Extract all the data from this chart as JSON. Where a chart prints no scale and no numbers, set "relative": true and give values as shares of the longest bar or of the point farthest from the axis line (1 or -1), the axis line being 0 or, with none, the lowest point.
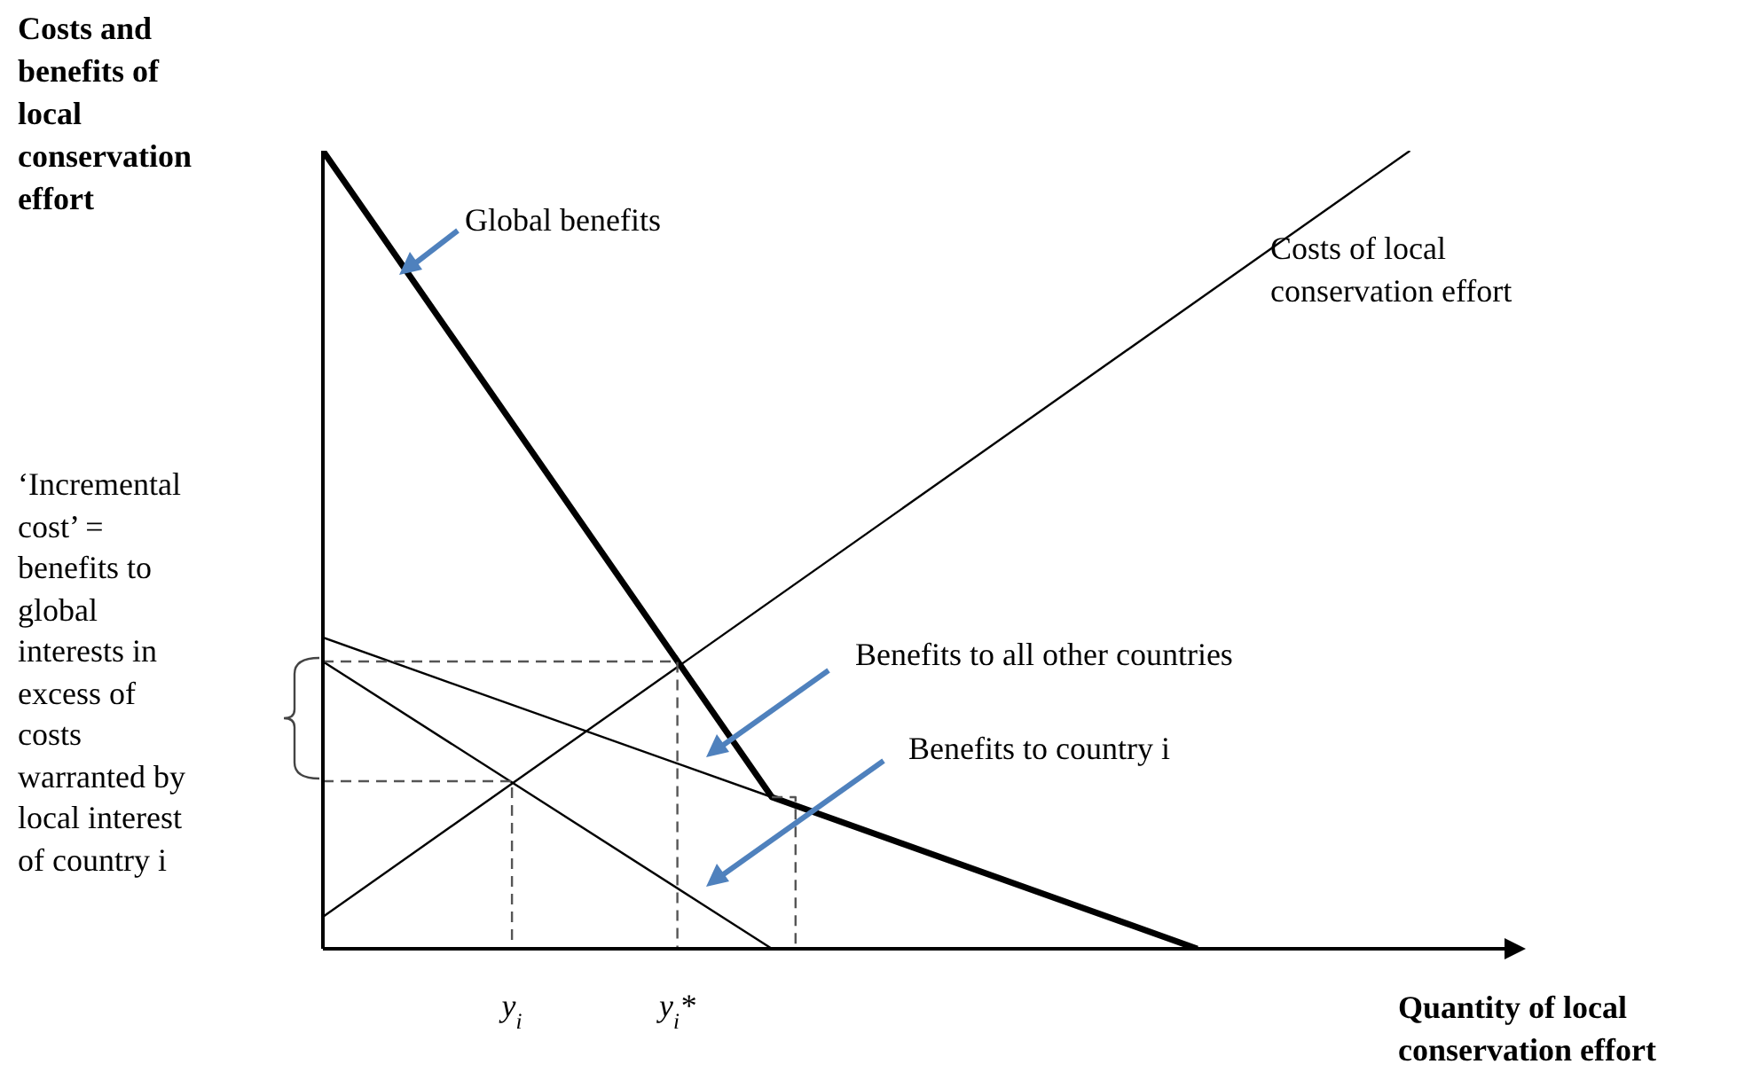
{
  "chart_data": {
    "type": "line",
    "relative": true,
    "ylabel": "Costs and benefits of local conservation effort",
    "xlabel": "Quantity of local conservation effort",
    "categories": [
      null,
      null,
      null,
      null,
      null,
      null,
      null,
      null,
      "y$_{i}$",
      null,
      null,
      null,
      null,
      null,
      null,
      "y$_{i}$*",
      null,
      null,
      null,
      null,
      null,
      null,
      null,
      null,
      null,
      null,
      null,
      null,
      null,
      null,
      null,
      null,
      null,
      null,
      null,
      null,
      null,
      null,
      null,
      null,
      null,
      null,
      null,
      null,
      null,
      null,
      null,
      null,
      null,
      null,
      null
    ],
    "annotations": [
      "‘Incremental cost’ = benefits to global interests in excess of costs warranted by local interest of country i"
    ],
    "series": [
      {
        "name": "Global benefits",
        "color": "#000000",
        "values": [
          1.0,
          null,
          null,
          null,
          null,
          null,
          null,
          null,
          null,
          null,
          null,
          null,
          null,
          null,
          null,
          null,
          null,
          null,
          null,
          0.19,
          null,
          null,
          null,
          null,
          null,
          null,
          null,
          null,
          null,
          null,
          null,
          null,
          null,
          null,
          null,
          null,
          null,
          0,
          null,
          null,
          null,
          null,
          null,
          null,
          null,
          null,
          null,
          null,
          null,
          null,
          null
        ]
      },
      {
        "name": "Costs of local conservation effort",
        "color": "#000000",
        "values": [
          0.04,
          null,
          null,
          null,
          null,
          null,
          null,
          null,
          null,
          null,
          null,
          null,
          null,
          null,
          null,
          null,
          null,
          null,
          null,
          null,
          null,
          null,
          null,
          null,
          null,
          null,
          null,
          null,
          null,
          null,
          null,
          null,
          null,
          null,
          null,
          null,
          null,
          null,
          null,
          null,
          null,
          null,
          null,
          null,
          null,
          null,
          1.0,
          null,
          null,
          null,
          null
        ]
      },
      {
        "name": "Benefits to all other countries",
        "color": "#000000",
        "values": [
          0.39,
          null,
          null,
          null,
          null,
          null,
          null,
          null,
          null,
          null,
          null,
          null,
          null,
          null,
          null,
          null,
          null,
          null,
          null,
          0.19,
          null,
          null,
          null,
          null,
          null,
          null,
          null,
          null,
          null,
          null,
          null,
          null,
          null,
          null,
          null,
          null,
          null,
          null,
          null,
          null,
          null,
          null,
          null,
          null,
          null,
          null,
          null,
          null,
          null,
          null,
          null
        ]
      },
      {
        "name": "Benefits to country i",
        "color": "#000000",
        "values": [
          0.36,
          null,
          null,
          null,
          null,
          null,
          null,
          null,
          null,
          null,
          null,
          null,
          null,
          null,
          null,
          null,
          null,
          null,
          null,
          0,
          null,
          null,
          null,
          null,
          null,
          null,
          null,
          null,
          null,
          null,
          null,
          null,
          null,
          null,
          null,
          null,
          null,
          null,
          null,
          null,
          null,
          null,
          null,
          null,
          null,
          null,
          null,
          null,
          null,
          null,
          null
        ]
      },
      {
        "type": "step",
        "color": "#555555",
        "line_style": "dashed",
        "values": [
          0.36,
          null,
          null,
          null,
          null,
          null,
          null,
          null,
          null,
          null,
          null,
          null,
          null,
          null,
          null,
          0,
          null,
          null,
          null,
          null,
          null,
          null,
          null,
          null,
          null,
          null,
          null,
          null,
          null,
          null,
          null,
          null,
          null,
          null,
          null,
          null,
          null,
          null,
          null,
          null,
          null,
          null,
          null,
          null,
          null,
          null,
          null,
          null,
          null,
          null,
          null
        ]
      },
      {
        "type": "step",
        "color": "#555555",
        "line_style": "dashed",
        "values": [
          0.21,
          null,
          null,
          null,
          null,
          null,
          null,
          null,
          0,
          null,
          null,
          null,
          null,
          null,
          null,
          null,
          null,
          null,
          null,
          null,
          null,
          null,
          null,
          null,
          null,
          null,
          null,
          null,
          null,
          null,
          null,
          null,
          null,
          null,
          null,
          null,
          null,
          null,
          null,
          null,
          null,
          null,
          null,
          null,
          null,
          null,
          null,
          null,
          null,
          null,
          null
        ]
      },
      {
        "type": "step",
        "color": "#555555",
        "line_style": "dashed",
        "values": [
          null,
          null,
          null,
          null,
          null,
          null,
          null,
          null,
          null,
          null,
          null,
          null,
          null,
          null,
          null,
          null,
          null,
          null,
          null,
          0.19,
          0,
          null,
          null,
          null,
          null,
          null,
          null,
          null,
          null,
          null,
          null,
          null,
          null,
          null,
          null,
          null,
          null,
          null,
          null,
          null,
          null,
          null,
          null,
          null,
          null,
          null,
          null,
          null,
          null,
          null,
          null
        ]
      }
    ]
  }
}
